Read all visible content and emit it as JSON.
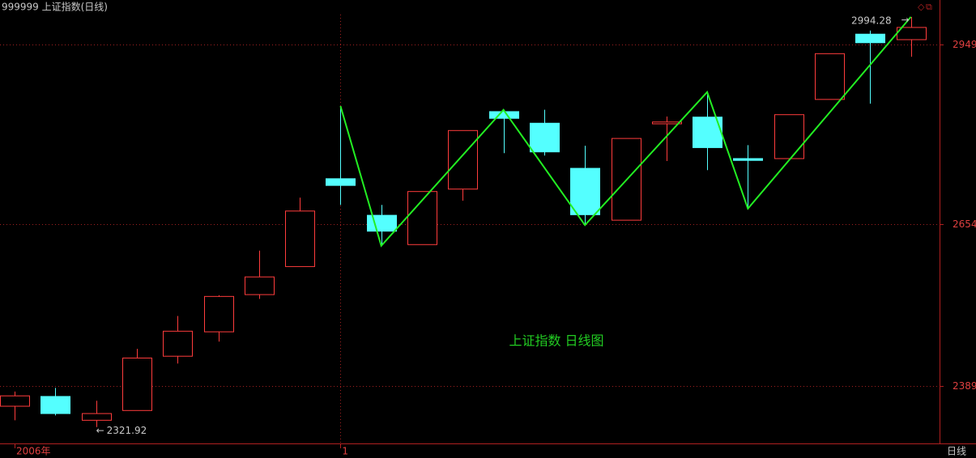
{
  "title": "999999 上证指数(日线)",
  "period_label": "日线",
  "chart_data": {
    "type": "candlestick",
    "annotation": "上证指数 日线图",
    "categories": [
      "2006年",
      null,
      null,
      null,
      null,
      null,
      null,
      null,
      "1",
      null,
      null,
      null,
      null,
      null,
      null,
      null,
      null,
      null,
      null,
      null,
      null,
      null,
      null
    ],
    "open": [
      2356,
      2372,
      2333,
      2349,
      2438,
      2478,
      2539,
      2585,
      2729,
      2669,
      2621,
      2712,
      2839,
      2820,
      2746,
      2661,
      2819,
      2830,
      2762,
      2762,
      2859,
      2966,
      2957
    ],
    "high": [
      2380,
      2386,
      2365,
      2450,
      2504,
      2538,
      2611,
      2698,
      2848,
      2686,
      2708,
      2808,
      2842,
      2842,
      2783,
      2795,
      2831,
      2871,
      2784,
      2834,
      2934,
      2972,
      2994.28
    ],
    "low": [
      2333,
      2341,
      2321.92,
      2349,
      2426,
      2462,
      2532,
      2585,
      2686,
      2619,
      2621,
      2693,
      2771,
      2767,
      2653,
      2661,
      2758,
      2743,
      2680,
      2762,
      2859,
      2852,
      2929
    ],
    "close": [
      2373,
      2344,
      2344,
      2435,
      2479,
      2536,
      2568,
      2676,
      2718,
      2643,
      2708,
      2808,
      2828,
      2773,
      2670,
      2795,
      2822,
      2780,
      2759,
      2834,
      2934,
      2952,
      2977
    ],
    "up_color": "#ff3c3c",
    "down_color": "#54ffff",
    "zigzag_color": "#22ee22",
    "zigzag": [
      {
        "index": 8,
        "at": "high"
      },
      {
        "index": 9,
        "at": "low"
      },
      {
        "index": 12,
        "at": "high"
      },
      {
        "index": 14,
        "at": "low"
      },
      {
        "index": 17,
        "at": "high"
      },
      {
        "index": 18,
        "at": "low"
      },
      {
        "index": 22,
        "at": "high"
      }
    ],
    "marked_points": [
      {
        "index": 2,
        "at": "low"
      },
      {
        "index": 22,
        "at": "high"
      }
    ],
    "ylim": [
      2295,
      3022
    ],
    "yticks": [
      2389,
      2654,
      2949
    ],
    "grid": true,
    "divider_index": 8
  }
}
